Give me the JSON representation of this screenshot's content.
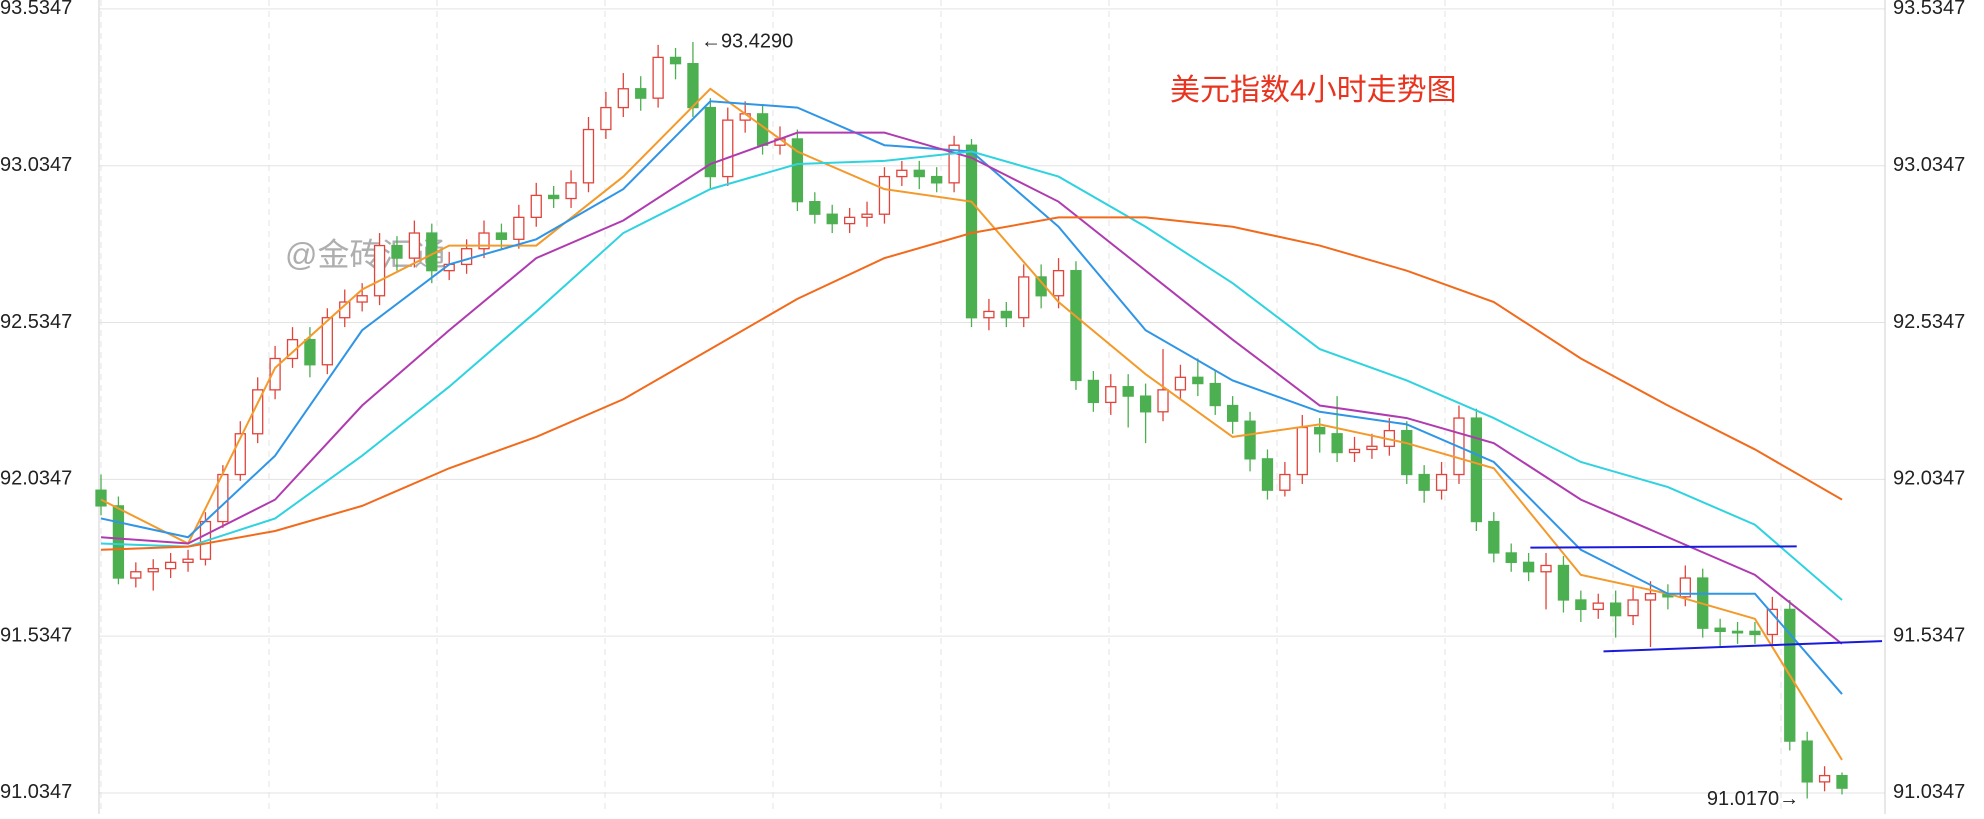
{
  "chart_data": {
    "type": "candlestick",
    "title": "美元指数4小时走势图",
    "watermark": "@金砖汇通",
    "up_color": "#e0443c",
    "down_color": "#4caf50",
    "ylim": [
      90.974,
      93.563
    ],
    "yticks": [
      91.0347,
      91.5347,
      92.0347,
      92.5347,
      93.0347,
      93.5347
    ],
    "grid": true,
    "open": [
      92.0,
      91.95,
      91.72,
      91.74,
      91.75,
      91.77,
      91.78,
      91.9,
      92.05,
      92.18,
      92.32,
      92.42,
      92.48,
      92.4,
      92.55,
      92.6,
      92.62,
      92.78,
      92.74,
      92.82,
      92.7,
      92.72,
      92.77,
      92.82,
      92.8,
      92.87,
      92.94,
      92.93,
      92.98,
      93.15,
      93.22,
      93.28,
      93.25,
      93.38,
      93.36,
      93.22,
      93.0,
      93.18,
      93.2,
      93.1,
      93.12,
      92.92,
      92.88,
      92.85,
      92.87,
      92.88,
      93.0,
      93.02,
      93.0,
      92.98,
      93.1,
      92.55,
      92.57,
      92.55,
      92.68,
      92.62,
      92.7,
      92.35,
      92.28,
      92.33,
      92.3,
      92.25,
      92.32,
      92.36,
      92.34,
      92.27,
      92.22,
      92.1,
      92.0,
      92.05,
      92.2,
      92.18,
      92.12,
      92.13,
      92.14,
      92.19,
      92.05,
      92.0,
      92.05,
      92.23,
      91.9,
      91.8,
      91.77,
      91.74,
      91.76,
      91.65,
      91.62,
      91.64,
      91.6,
      91.65,
      91.67,
      91.66,
      91.72,
      91.56,
      91.55,
      91.55,
      91.54,
      91.62,
      91.2,
      91.07,
      91.09
    ],
    "high": [
      92.05,
      91.98,
      91.77,
      91.78,
      91.8,
      91.81,
      91.93,
      92.08,
      92.22,
      92.36,
      92.46,
      92.52,
      92.52,
      92.58,
      92.64,
      92.66,
      92.82,
      92.81,
      92.86,
      92.85,
      92.76,
      92.8,
      92.86,
      92.85,
      92.91,
      92.98,
      92.97,
      93.02,
      93.19,
      93.27,
      93.33,
      93.32,
      93.42,
      93.41,
      93.429,
      93.25,
      93.22,
      93.24,
      93.23,
      93.16,
      93.15,
      92.95,
      92.91,
      92.9,
      92.92,
      93.03,
      93.05,
      93.05,
      93.03,
      93.13,
      93.12,
      92.61,
      92.6,
      92.72,
      92.72,
      92.74,
      92.73,
      92.38,
      92.37,
      92.37,
      92.34,
      92.45,
      92.4,
      92.42,
      92.38,
      92.3,
      92.25,
      92.13,
      92.09,
      92.24,
      92.23,
      92.3,
      92.17,
      92.18,
      92.23,
      92.22,
      92.08,
      92.09,
      92.27,
      92.26,
      91.93,
      91.83,
      91.8,
      91.8,
      91.79,
      91.68,
      91.67,
      91.68,
      91.69,
      91.71,
      91.7,
      91.76,
      91.75,
      91.59,
      91.58,
      91.58,
      91.66,
      91.65,
      91.23,
      91.12,
      91.1
    ],
    "low": [
      91.92,
      91.7,
      91.69,
      91.68,
      91.72,
      91.74,
      91.76,
      91.88,
      92.03,
      92.15,
      92.29,
      92.39,
      92.36,
      92.37,
      92.52,
      92.57,
      92.59,
      92.7,
      92.71,
      92.66,
      92.67,
      92.69,
      92.74,
      92.77,
      92.77,
      92.84,
      92.9,
      92.9,
      92.95,
      93.12,
      93.19,
      93.21,
      93.22,
      93.31,
      93.19,
      92.96,
      92.97,
      93.14,
      93.07,
      93.07,
      92.89,
      92.85,
      92.82,
      92.82,
      92.84,
      92.85,
      92.97,
      92.96,
      92.95,
      92.95,
      92.52,
      92.51,
      92.52,
      92.52,
      92.58,
      92.58,
      92.32,
      92.25,
      92.24,
      92.2,
      92.15,
      92.22,
      92.29,
      92.3,
      92.24,
      92.18,
      92.06,
      91.97,
      91.98,
      92.02,
      92.12,
      92.09,
      92.09,
      92.1,
      92.11,
      92.02,
      91.96,
      91.97,
      92.02,
      91.87,
      91.77,
      91.74,
      91.71,
      91.62,
      91.61,
      91.58,
      91.59,
      91.53,
      91.57,
      91.5,
      91.62,
      91.63,
      91.53,
      91.5,
      91.51,
      91.51,
      91.51,
      91.17,
      91.017,
      91.04,
      91.03
    ],
    "close": [
      91.95,
      91.72,
      91.74,
      91.75,
      91.77,
      91.78,
      91.9,
      92.05,
      92.18,
      92.32,
      92.42,
      92.48,
      92.4,
      92.55,
      92.6,
      92.62,
      92.78,
      92.74,
      92.82,
      92.7,
      92.72,
      92.77,
      92.82,
      92.8,
      92.87,
      92.94,
      92.93,
      92.98,
      93.15,
      93.22,
      93.28,
      93.25,
      93.38,
      93.36,
      93.22,
      93.0,
      93.18,
      93.2,
      93.1,
      93.12,
      92.92,
      92.88,
      92.85,
      92.87,
      92.88,
      93.0,
      93.02,
      93.0,
      92.98,
      93.1,
      92.55,
      92.57,
      92.55,
      92.68,
      92.62,
      92.7,
      92.35,
      92.28,
      92.33,
      92.3,
      92.25,
      92.32,
      92.36,
      92.34,
      92.27,
      92.22,
      92.1,
      92.0,
      92.05,
      92.2,
      92.18,
      92.12,
      92.13,
      92.14,
      92.19,
      92.05,
      92.0,
      92.05,
      92.23,
      91.9,
      91.8,
      91.77,
      91.74,
      91.76,
      91.65,
      91.62,
      91.64,
      91.6,
      91.65,
      91.67,
      91.66,
      91.72,
      91.56,
      91.55,
      91.55,
      91.54,
      91.62,
      91.2,
      91.07,
      91.09,
      91.05
    ],
    "ma_x": [
      0,
      5,
      10,
      15,
      20,
      25,
      30,
      35,
      40,
      45,
      50,
      55,
      60,
      65,
      70,
      75,
      80,
      85,
      90,
      95,
      100
    ],
    "ma_lines": [
      {
        "color": "#f39a2b",
        "values": [
          91.97,
          91.83,
          92.39,
          92.64,
          92.78,
          92.78,
          93.0,
          93.28,
          93.08,
          92.96,
          92.92,
          92.6,
          92.37,
          92.17,
          92.21,
          92.15,
          92.07,
          91.73,
          91.67,
          91.59,
          91.14
        ]
      },
      {
        "color": "#2f95e6",
        "values": [
          91.91,
          91.85,
          92.11,
          92.51,
          92.72,
          92.8,
          92.96,
          93.24,
          93.22,
          93.1,
          93.08,
          92.84,
          92.51,
          92.35,
          92.25,
          92.21,
          92.09,
          91.81,
          91.67,
          91.67,
          91.35
        ]
      },
      {
        "color": "#b03bb0",
        "values": [
          91.85,
          91.83,
          91.97,
          92.27,
          92.51,
          92.74,
          92.86,
          93.04,
          93.14,
          93.14,
          93.06,
          92.92,
          92.7,
          92.48,
          92.27,
          92.23,
          92.15,
          91.97,
          91.85,
          91.73,
          91.51
        ]
      },
      {
        "color": "#2fd3e0",
        "values": [
          91.83,
          91.82,
          91.91,
          92.11,
          92.33,
          92.57,
          92.82,
          92.96,
          93.04,
          93.05,
          93.08,
          93.0,
          92.84,
          92.66,
          92.45,
          92.35,
          92.23,
          92.09,
          92.01,
          91.89,
          91.65
        ]
      },
      {
        "color": "#f26a1b",
        "values": [
          91.81,
          91.82,
          91.87,
          91.95,
          92.07,
          92.17,
          92.29,
          92.45,
          92.61,
          92.74,
          92.82,
          92.87,
          92.87,
          92.84,
          92.78,
          92.7,
          92.6,
          92.42,
          92.27,
          92.13,
          91.97
        ]
      }
    ],
    "trendlines": [
      {
        "color": "#1a1adb",
        "x": [
          82.1,
          97.4
        ],
        "values": [
          91.817,
          91.821
        ]
      },
      {
        "color": "#1a1adb",
        "x": [
          86.3,
          102.3
        ],
        "values": [
          91.486,
          91.519
        ]
      }
    ],
    "annotations": [
      {
        "text": "←93.4290",
        "x": 34,
        "value": 93.429
      },
      {
        "text": "91.0170→",
        "x": 98,
        "value": 91.017
      }
    ]
  }
}
